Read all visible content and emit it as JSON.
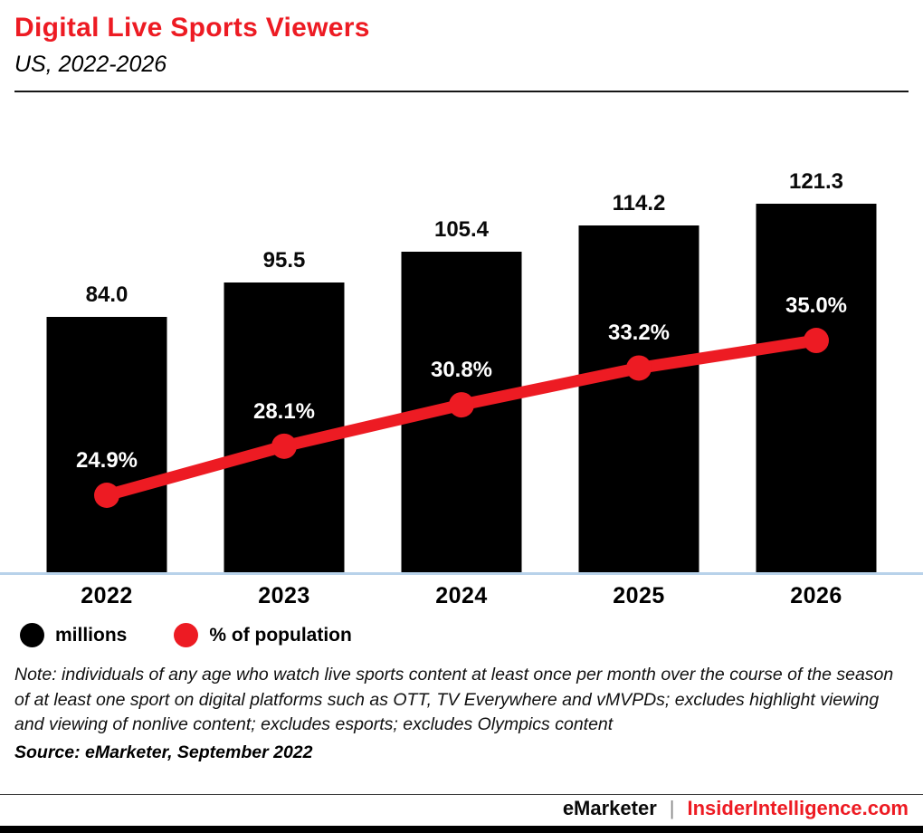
{
  "header": {
    "title": "Digital Live Sports Viewers",
    "subtitle": "US, 2022-2026"
  },
  "chart_data": {
    "type": "bar",
    "subtype": "bar-with-line-overlay",
    "categories": [
      "2022",
      "2023",
      "2024",
      "2025",
      "2026"
    ],
    "series": [
      {
        "name": "millions",
        "type": "bar",
        "color": "#000000",
        "values": [
          84.0,
          95.5,
          105.4,
          114.2,
          121.3
        ]
      },
      {
        "name": "% of population",
        "type": "line",
        "color": "#ed1b23",
        "values": [
          24.9,
          28.1,
          30.8,
          33.2,
          35.0
        ]
      }
    ],
    "title": "Digital Live Sports Viewers",
    "subtitle": "US, 2022-2026",
    "xlabel": "",
    "ylabel": "",
    "ylim_bar": [
      0,
      130
    ],
    "ylim_line_pct": [
      0,
      40
    ],
    "grid": false,
    "legend_position": "bottom",
    "data_labels_bar": [
      "84.0",
      "95.5",
      "105.4",
      "114.2",
      "121.3"
    ],
    "data_labels_line": [
      "24.9%",
      "28.1%",
      "30.8%",
      "33.2%",
      "35.0%"
    ]
  },
  "legend": {
    "items": [
      {
        "label": "millions",
        "color": "#000000"
      },
      {
        "label": "% of population",
        "color": "#ed1b23"
      }
    ]
  },
  "note": "Note: individuals of any age who watch live sports content at least once per month over the course of the season of at least one sport on digital platforms such as OTT, TV Everywhere and vMVPDs; excludes highlight viewing and viewing of nonlive content; excludes esports; excludes Olympics content",
  "source": "Source: eMarketer, September 2022",
  "footer": {
    "brand": "eMarketer",
    "separator": "|",
    "site": "InsiderIntelligence.com"
  },
  "colors": {
    "accent": "#ed1b23",
    "bar": "#000000",
    "baseline": "#b8d2ea"
  }
}
